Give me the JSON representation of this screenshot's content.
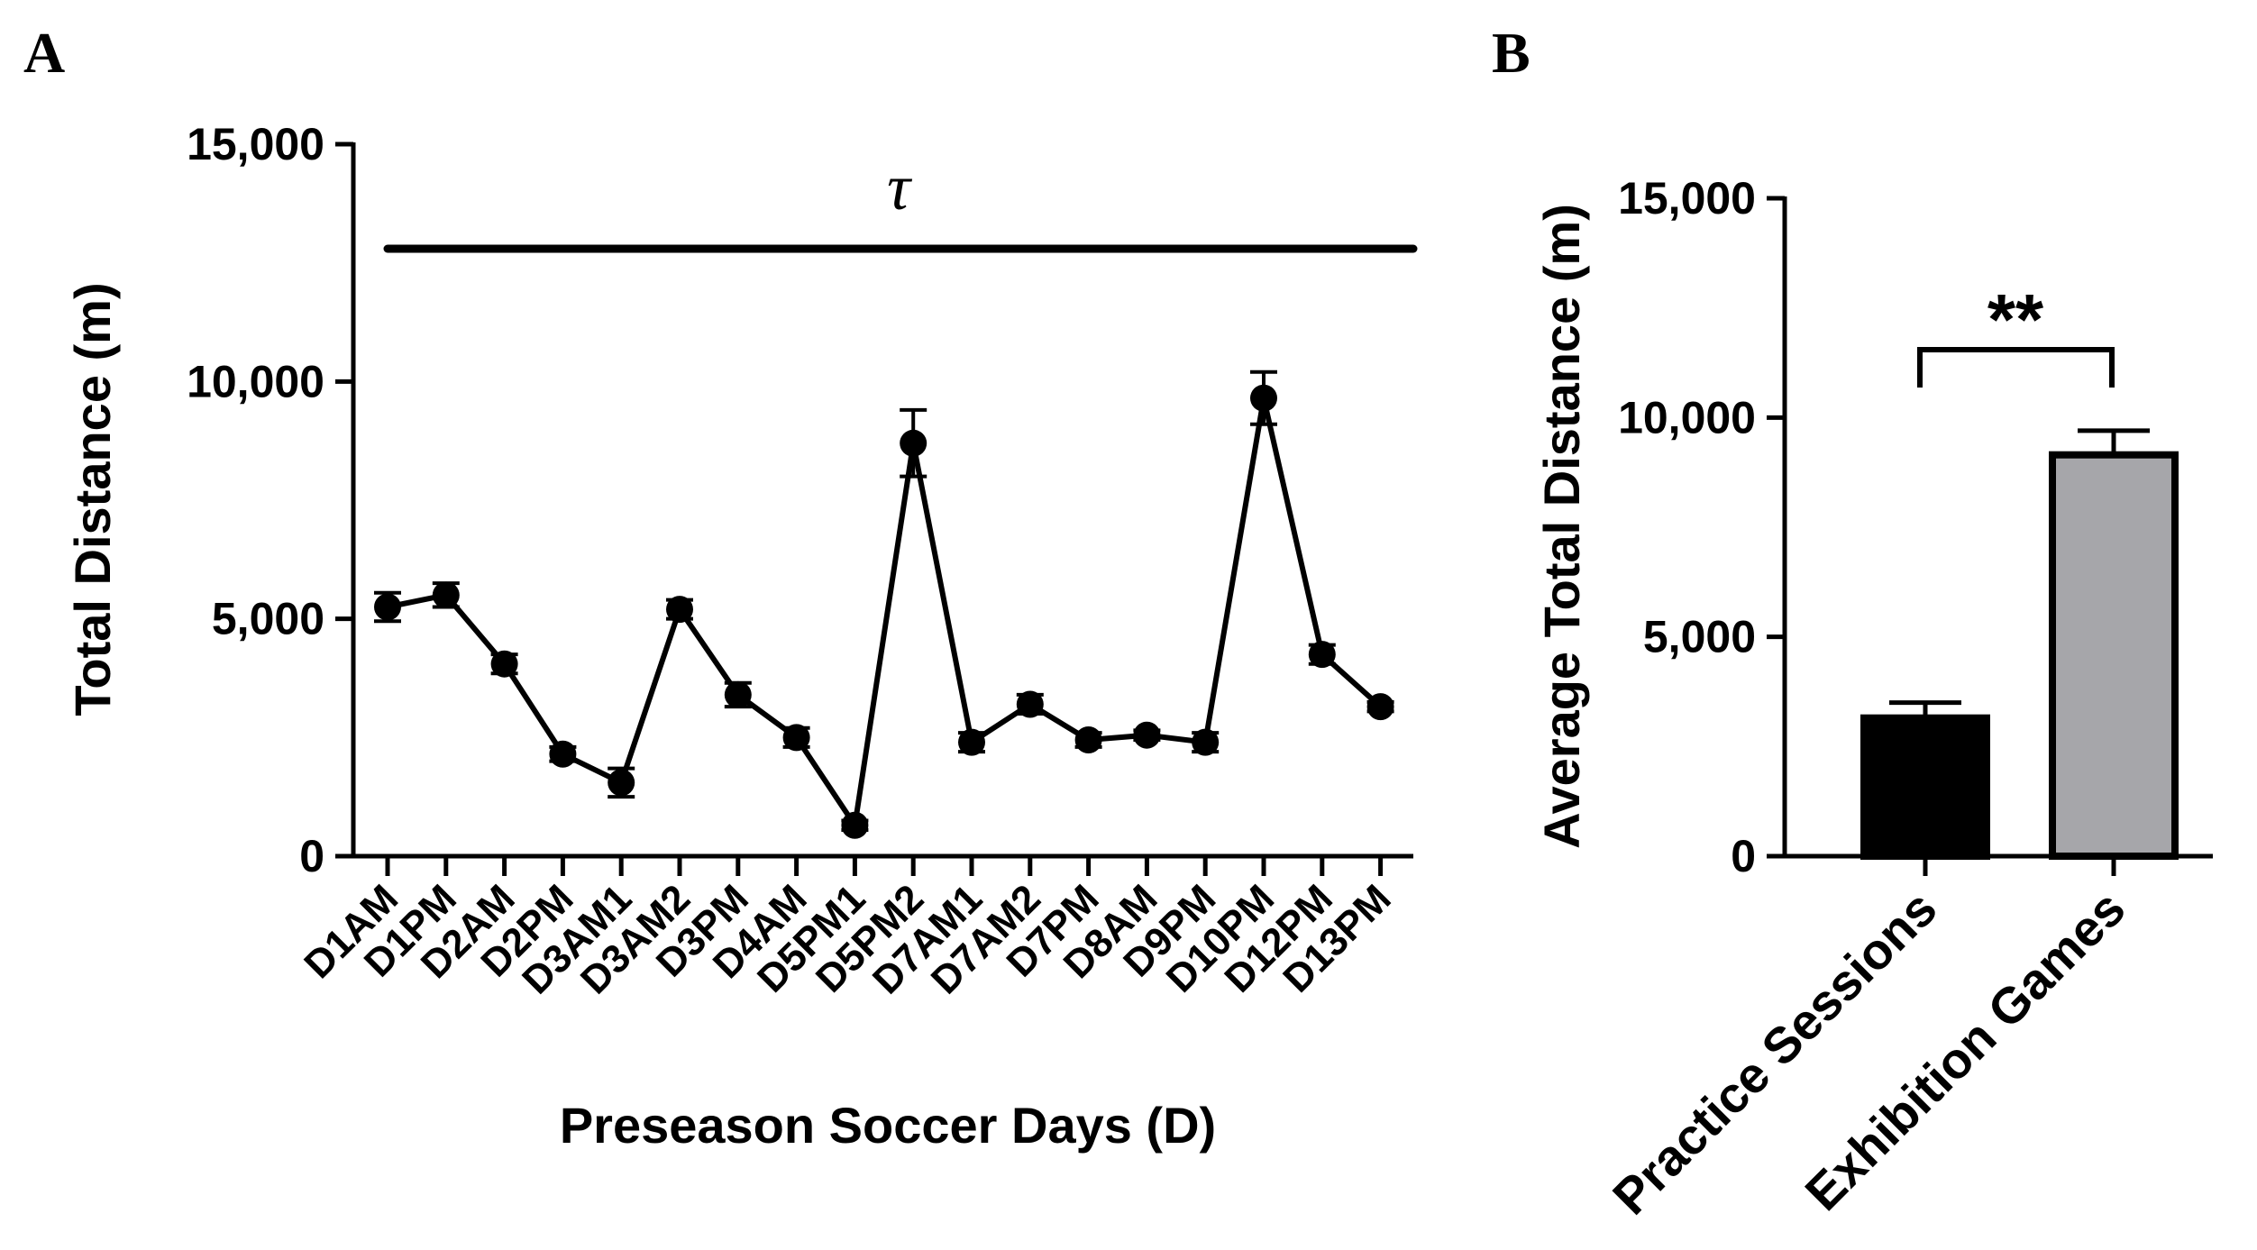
{
  "panels": {
    "a_label": "A",
    "b_label": "B"
  },
  "chart_data": [
    {
      "type": "line",
      "panel": "A",
      "title": "",
      "xlabel": "Preseason Soccer Days (D)",
      "ylabel": "Total Distance (m)",
      "ylim": [
        0,
        15000
      ],
      "yticks": [
        0,
        5000,
        10000,
        15000
      ],
      "ytick_labels": [
        "0",
        "5,000",
        "10,000",
        "15,000"
      ],
      "categories": [
        "D1AM",
        "D1PM",
        "D2AM",
        "D2PM",
        "D3AM1",
        "D3AM2",
        "D3PM",
        "D4AM",
        "D5PM1",
        "D5PM2",
        "D7AM1",
        "D7AM2",
        "D7PM",
        "D8AM",
        "D9PM",
        "D10PM",
        "D12PM",
        "D13PM"
      ],
      "values": [
        5250,
        5500,
        4050,
        2150,
        1550,
        5200,
        3400,
        2500,
        650,
        8700,
        2400,
        3200,
        2450,
        2550,
        2400,
        9650,
        4250,
        3150
      ],
      "errors": [
        300,
        250,
        200,
        150,
        300,
        200,
        250,
        200,
        100,
        700,
        200,
        200,
        150,
        100,
        200,
        550,
        200,
        100
      ],
      "annotation": "τ",
      "color": "#000000"
    },
    {
      "type": "bar",
      "panel": "B",
      "title": "",
      "xlabel": "",
      "ylabel": "Average Total Distance (m)",
      "ylim": [
        0,
        15000
      ],
      "yticks": [
        0,
        5000,
        10000,
        15000
      ],
      "ytick_labels": [
        "0",
        "5,000",
        "10,000",
        "15,000"
      ],
      "categories": [
        "Practice Sessions",
        "Exhibition Games"
      ],
      "values": [
        3150,
        9150
      ],
      "errors": [
        350,
        550
      ],
      "bar_colors": [
        "#000000",
        "#a6a6aa"
      ],
      "annotation": "**"
    }
  ]
}
